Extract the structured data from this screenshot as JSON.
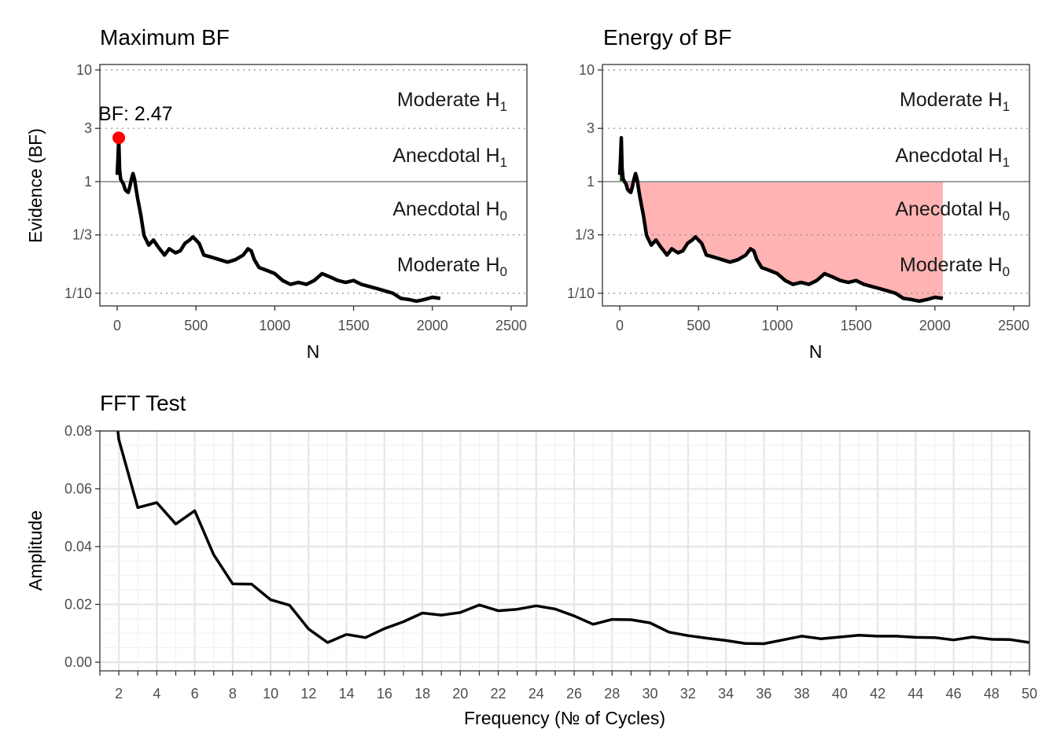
{
  "chart_data": [
    {
      "type": "line",
      "title": "Maximum BF",
      "xlabel": "N",
      "ylabel": "Evidence (BF)",
      "xlim": [
        -110,
        2600
      ],
      "ylim_log_bf": [
        0.077,
        11.2
      ],
      "y_scale": "log",
      "x_ticks": [
        "0",
        "500",
        "1000",
        "1500",
        "2000",
        "2500"
      ],
      "y_ticks": [
        "10",
        "3",
        "1",
        "1/3",
        "1/10"
      ],
      "y_tick_values": [
        10,
        3,
        1,
        0.3333,
        0.1
      ],
      "evidence_zones": [
        {
          "label": "Moderate H",
          "sub": "1"
        },
        {
          "label": "Anecdotal H",
          "sub": "1"
        },
        {
          "label": "Anecdotal H",
          "sub": "0"
        },
        {
          "label": "Moderate H",
          "sub": "0"
        }
      ],
      "max_point": {
        "x": 10,
        "y": 2.47,
        "label": "BF: 2.47",
        "color": "#ff0000"
      },
      "series": [
        {
          "x": [
            0,
            5,
            10,
            15,
            22,
            30,
            40,
            50,
            60,
            70,
            80,
            90,
            100,
            110,
            120,
            130,
            150,
            170,
            200,
            230,
            260,
            300,
            330,
            370,
            400,
            430,
            460,
            480,
            500,
            520,
            550,
            600,
            650,
            700,
            750,
            800,
            830,
            850,
            870,
            900,
            950,
            1000,
            1050,
            1100,
            1150,
            1200,
            1250,
            1300,
            1350,
            1400,
            1450,
            1500,
            1550,
            1600,
            1650,
            1700,
            1750,
            1800,
            1850,
            1900,
            1950,
            2000,
            2050
          ],
          "y": [
            1.15,
            1.6,
            2.47,
            1.3,
            1.05,
            1.0,
            0.95,
            0.85,
            0.82,
            0.8,
            0.9,
            1.05,
            1.18,
            1.05,
            0.85,
            0.7,
            0.5,
            0.33,
            0.27,
            0.3,
            0.26,
            0.22,
            0.25,
            0.23,
            0.24,
            0.28,
            0.3,
            0.32,
            0.3,
            0.28,
            0.22,
            0.21,
            0.2,
            0.19,
            0.2,
            0.22,
            0.25,
            0.24,
            0.2,
            0.17,
            0.16,
            0.15,
            0.13,
            0.12,
            0.125,
            0.12,
            0.13,
            0.15,
            0.14,
            0.13,
            0.125,
            0.13,
            0.12,
            0.115,
            0.11,
            0.105,
            0.1,
            0.09,
            0.088,
            0.085,
            0.088,
            0.092,
            0.09
          ]
        }
      ]
    },
    {
      "type": "area",
      "title": "Energy of BF",
      "xlabel": "N",
      "ylabel": "",
      "xlim": [
        -110,
        2600
      ],
      "ylim_log_bf": [
        0.077,
        11.2
      ],
      "y_scale": "log",
      "x_ticks": [
        "0",
        "500",
        "1000",
        "1500",
        "2000",
        "2500"
      ],
      "y_ticks": [
        "10",
        "3",
        "1",
        "1/3",
        "1/10"
      ],
      "y_tick_values": [
        10,
        3,
        1,
        0.3333,
        0.1
      ],
      "evidence_zones": [
        {
          "label": "Moderate H",
          "sub": "1"
        },
        {
          "label": "Anecdotal H",
          "sub": "1"
        },
        {
          "label": "Anecdotal H",
          "sub": "0"
        },
        {
          "label": "Moderate H",
          "sub": "0"
        }
      ],
      "fill_h1_color": "#1b5e20",
      "fill_h0_color": "#ffb3b3",
      "fill_h0_x_end": 2050
    },
    {
      "type": "line",
      "title": "FFT Test",
      "xlabel": "Frequency (№ of Cycles)",
      "ylabel": "Amplitude",
      "xlim": [
        1,
        50
      ],
      "ylim": [
        -0.003,
        0.08
      ],
      "x_ticks": [
        "2",
        "4",
        "6",
        "8",
        "10",
        "12",
        "14",
        "16",
        "18",
        "20",
        "22",
        "24",
        "26",
        "28",
        "30",
        "32",
        "34",
        "36",
        "38",
        "40",
        "42",
        "44",
        "46",
        "48",
        "50"
      ],
      "y_ticks": [
        "0.08",
        "0.06",
        "0.04",
        "0.02",
        "0.00"
      ],
      "y_tick_values": [
        0.08,
        0.06,
        0.04,
        0.02,
        0.0
      ],
      "series": [
        {
          "x": [
            2,
            3,
            4,
            5,
            6,
            7,
            8,
            9,
            10,
            11,
            12,
            13,
            14,
            15,
            16,
            17,
            18,
            19,
            20,
            21,
            22,
            23,
            24,
            25,
            26,
            27,
            28,
            29,
            30,
            31,
            32,
            33,
            34,
            35,
            36,
            37,
            38,
            39,
            40,
            41,
            42,
            43,
            44,
            45,
            46,
            47,
            48,
            49,
            50
          ],
          "y": [
            0.077,
            0.0535,
            0.0552,
            0.0478,
            0.0524,
            0.0372,
            0.0271,
            0.027,
            0.0216,
            0.0197,
            0.0115,
            0.0068,
            0.0096,
            0.0085,
            0.0116,
            0.014,
            0.017,
            0.0163,
            0.0172,
            0.0198,
            0.0178,
            0.0183,
            0.0195,
            0.0184,
            0.016,
            0.0131,
            0.0148,
            0.0147,
            0.0136,
            0.0104,
            0.0092,
            0.0083,
            0.0075,
            0.0065,
            0.0064,
            0.0077,
            0.009,
            0.0081,
            0.0087,
            0.0093,
            0.009,
            0.009,
            0.0086,
            0.0085,
            0.0077,
            0.0087,
            0.0079,
            0.0078,
            0.0068
          ]
        }
      ]
    }
  ]
}
